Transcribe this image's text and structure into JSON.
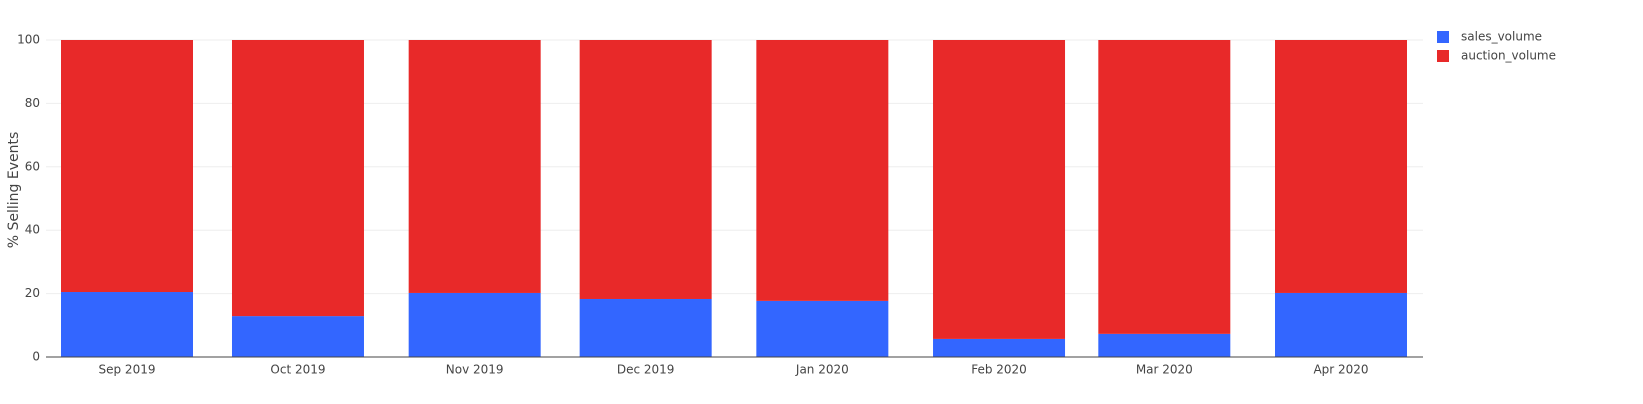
{
  "chart_data": {
    "type": "stacked_bar",
    "y_label": "% Selling Events",
    "categories": [
      "Sep 2019",
      "Oct 2019",
      "Nov 2019",
      "Dec 2019",
      "Jan 2020",
      "Feb 2020",
      "Mar 2020",
      "Apr 2020"
    ],
    "series": [
      {
        "name": "sales_volume",
        "color": "#3366ff",
        "values": [
          20.5,
          12.9,
          20.2,
          18.3,
          17.7,
          5.7,
          7.3,
          20.2
        ]
      },
      {
        "name": "auction_volume",
        "color": "#e82929",
        "values": [
          79.5,
          87.1,
          79.8,
          81.7,
          82.3,
          94.3,
          92.7,
          79.8
        ]
      }
    ],
    "ylim": [
      0,
      100
    ],
    "yticks": [
      0,
      20,
      40,
      60,
      80,
      100
    ],
    "grid": true,
    "legend": "top-right"
  }
}
